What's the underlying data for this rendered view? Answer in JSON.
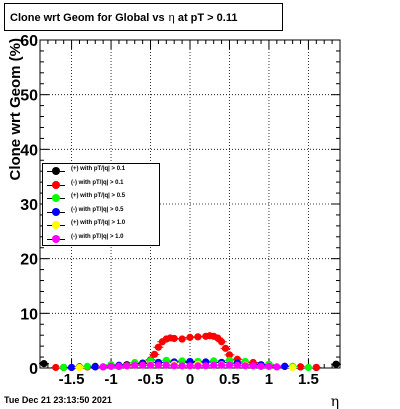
{
  "chart_data": {
    "type": "scatter",
    "title": "Clone wrt Geom for Global vs",
    "title_eta": "η",
    "title_suffix": "at pT > 0.11",
    "xlabel": "η",
    "ylabel": "Clone wrt Geom (%)",
    "xlim": [
      -1.9,
      1.9
    ],
    "ylim": [
      0,
      60
    ],
    "x_ticks": [
      -1.5,
      -1,
      -0.5,
      0,
      0.5,
      1,
      1.5
    ],
    "x_tick_labels": [
      "-1.5",
      "-1",
      "-0.5",
      "0",
      "0.5",
      "1",
      "1.5"
    ],
    "y_ticks": [
      0,
      10,
      20,
      30,
      40,
      50,
      60
    ],
    "y_tick_labels": [
      "0",
      "10",
      "20",
      "30",
      "40",
      "50",
      "60"
    ],
    "grid": true,
    "legend_position": "left-middle",
    "series": [
      {
        "name": "(+) with pT/|q| > 0.1",
        "color": "#000000",
        "x": [
          -1.85,
          -1.6,
          -1.4,
          -1.2,
          -1.0,
          -0.8,
          -0.6,
          -0.4,
          -0.2,
          0.0,
          0.2,
          0.4,
          0.6,
          0.8,
          1.0,
          1.2,
          1.4,
          1.6,
          1.85
        ],
        "y": [
          0.8,
          0.1,
          0.2,
          0.3,
          0.4,
          0.6,
          0.9,
          1.0,
          1.1,
          1.0,
          1.1,
          1.0,
          0.9,
          0.7,
          0.5,
          0.3,
          0.2,
          0.1,
          0.7
        ]
      },
      {
        "name": "(-) with pT/|q| > 0.1",
        "color": "#ff0000",
        "x": [
          -1.7,
          -1.5,
          -1.3,
          -1.1,
          -0.9,
          -0.7,
          -0.5,
          -0.45,
          -0.4,
          -0.35,
          -0.3,
          -0.25,
          -0.2,
          -0.1,
          0.0,
          0.1,
          0.2,
          0.25,
          0.3,
          0.35,
          0.4,
          0.45,
          0.5,
          0.6,
          0.8,
          1.0,
          1.2,
          1.4,
          1.6
        ],
        "y": [
          0.1,
          0.1,
          0.2,
          0.2,
          0.3,
          0.6,
          1.5,
          2.5,
          3.8,
          4.8,
          5.3,
          5.5,
          5.4,
          5.3,
          5.6,
          5.7,
          5.8,
          5.9,
          5.8,
          5.5,
          4.8,
          3.6,
          2.4,
          1.6,
          1.0,
          0.6,
          0.3,
          0.2,
          0.1
        ]
      },
      {
        "name": "(+) with pT/|q| > 0.5",
        "color": "#00ff00",
        "x": [
          -1.6,
          -1.3,
          -1.0,
          -0.7,
          -0.5,
          -0.3,
          -0.1,
          0.1,
          0.3,
          0.5,
          0.7,
          1.0,
          1.3,
          1.5
        ],
        "y": [
          0.1,
          0.3,
          0.6,
          1.0,
          1.3,
          1.4,
          1.3,
          1.2,
          1.3,
          1.4,
          1.2,
          0.7,
          0.3,
          0.1
        ]
      },
      {
        "name": "(-) with pT/|q| > 0.5",
        "color": "#0000ff",
        "x": [
          -1.5,
          -1.2,
          -0.9,
          -0.6,
          -0.4,
          -0.2,
          0.0,
          0.2,
          0.4,
          0.6,
          0.9,
          1.2
        ],
        "y": [
          0.1,
          0.2,
          0.5,
          0.8,
          1.0,
          1.1,
          1.2,
          1.1,
          1.0,
          0.9,
          0.6,
          0.3
        ]
      },
      {
        "name": "(+) with pT/|q| > 1.0",
        "color": "#ffff00",
        "x": [
          -1.4,
          -1.1,
          -0.8,
          -0.5,
          -0.2,
          0.1,
          0.4,
          0.7,
          1.0,
          1.3
        ],
        "y": [
          0.1,
          0.2,
          0.4,
          0.6,
          0.7,
          0.7,
          0.6,
          0.5,
          0.3,
          0.1
        ]
      },
      {
        "name": "(-) with pT/|q| > 1.0",
        "color": "#ff00ff",
        "x": [
          -1.1,
          -1.0,
          -0.9,
          -0.8,
          -0.7,
          -0.6,
          -0.5,
          -0.4,
          -0.3,
          -0.2,
          -0.1,
          0.0,
          0.1,
          0.2,
          0.3,
          0.4,
          0.5,
          0.6,
          0.7,
          0.8,
          0.9,
          1.0,
          1.1
        ],
        "y": [
          0.2,
          0.3,
          0.3,
          0.4,
          0.5,
          0.5,
          0.5,
          0.5,
          0.5,
          0.4,
          0.4,
          0.4,
          0.4,
          0.4,
          0.5,
          0.5,
          0.5,
          0.5,
          0.4,
          0.4,
          0.3,
          0.3,
          0.2
        ]
      }
    ]
  },
  "footer": {
    "timestamp": "Tue Dec 21 23:13:50 2021"
  }
}
